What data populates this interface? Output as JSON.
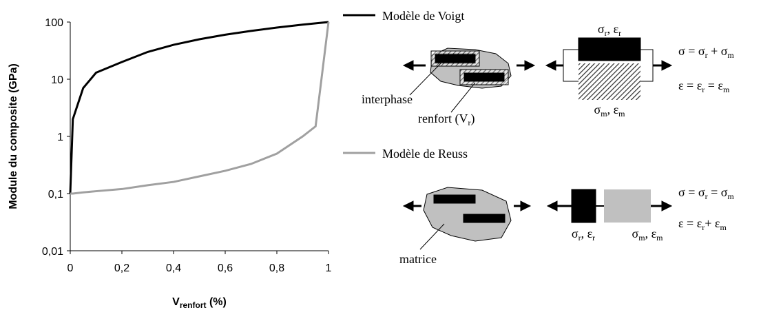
{
  "chart_data": {
    "type": "line",
    "ylabel": "Module du composite (GPa)",
    "xlabel": [
      "V",
      "renfort",
      " (%)"
    ],
    "x": [
      0,
      0.01,
      0.05,
      0.1,
      0.2,
      0.3,
      0.4,
      0.5,
      0.6,
      0.7,
      0.8,
      0.9,
      0.95,
      0.97,
      1
    ],
    "series": [
      {
        "name": "Modèle de Voigt",
        "color": "#000000",
        "values": [
          0.1,
          2,
          7,
          13,
          20,
          30,
          40,
          50,
          60,
          70,
          80,
          90,
          95,
          97,
          100
        ]
      },
      {
        "name": "Modèle de Reuss",
        "color": "#a0a0a0",
        "values": [
          0.1,
          0.1,
          0.105,
          0.11,
          0.12,
          0.14,
          0.16,
          0.2,
          0.25,
          0.33,
          0.5,
          1,
          1.5,
          8,
          100
        ]
      }
    ],
    "xlim": [
      0,
      1
    ],
    "xticks": [
      0,
      {
        "value": 0.2,
        "label": "0,2"
      },
      {
        "value": 0.4,
        "label": "0,4"
      },
      {
        "value": 0.6,
        "label": "0,6"
      },
      {
        "value": 0.8,
        "label": "0,8"
      },
      1
    ],
    "ylim": [
      0.01,
      100
    ],
    "yticks": [
      {
        "value": 0.01,
        "label": "0,01"
      },
      {
        "value": 0.1,
        "label": "0,1"
      },
      1,
      10,
      100
    ],
    "log_y": true,
    "grid": false
  },
  "diagram": {
    "voigt": {
      "interphase": [
        "interphase"
      ],
      "renfort": [
        "renfort (V",
        "r",
        ")"
      ],
      "top_label": [
        "σ",
        "r",
        ", ε",
        "r"
      ],
      "bottom_label": [
        "σ",
        "m",
        ", ε",
        "m"
      ],
      "eq1": [
        "σ = σ",
        "r",
        " + σ",
        "m"
      ],
      "eq2": [
        "ε = ε",
        "r",
        " = ε",
        "m"
      ]
    },
    "reuss": {
      "matrice": [
        "matrice"
      ],
      "left_label": [
        "σ",
        "r",
        ", ε",
        "r"
      ],
      "right_label": [
        "σ",
        "m",
        ", ε",
        "m"
      ],
      "eq1": [
        "σ = σ",
        "r",
        " = σ",
        "m"
      ],
      "eq2": [
        "ε = ε",
        "r",
        "+ ε",
        "m"
      ]
    }
  }
}
